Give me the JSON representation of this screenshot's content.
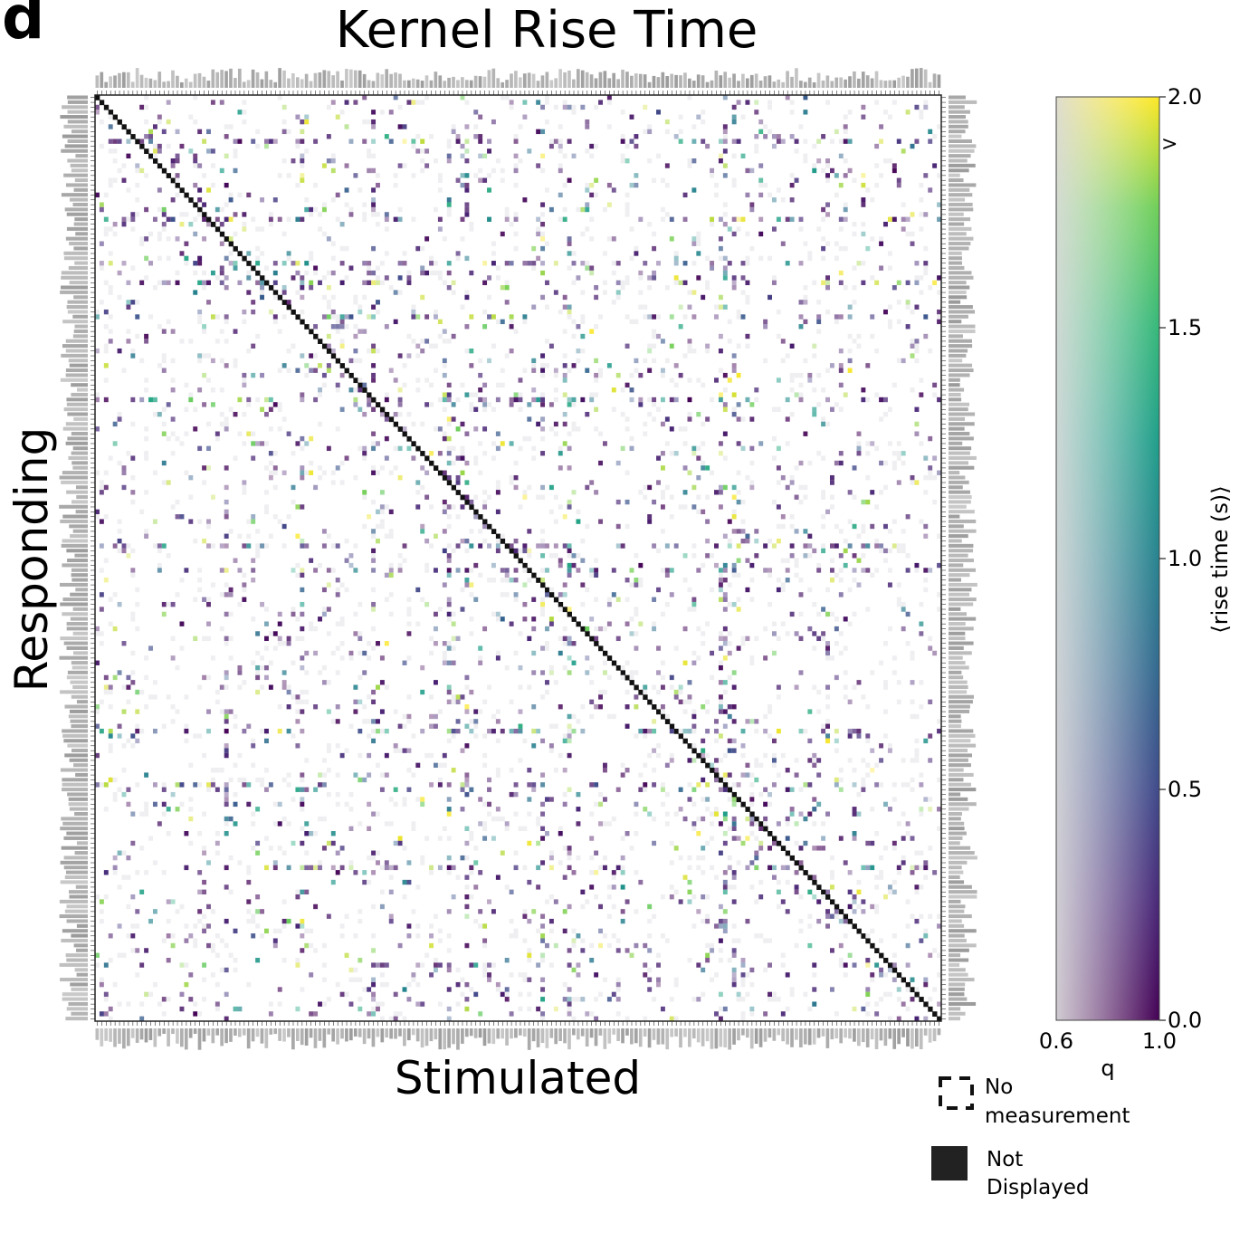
{
  "panel_letter": "d",
  "chart_data": {
    "type": "heatmap",
    "title": "Kernel Rise Time",
    "xlabel": "Stimulated",
    "ylabel": "Responding",
    "n_neurons": 190,
    "diagonal": "not displayed",
    "colorbar": {
      "label": "⟨rise time (s)⟩",
      "value_ticks": [
        "0.0",
        "0.5",
        "1.0",
        "1.5",
        "2.0"
      ],
      "value_range": [
        0.0,
        2.0
      ],
      "q_ticks": [
        "0.6",
        "1.0"
      ],
      "q_range": [
        0.6,
        1.0
      ],
      "q_label": "q",
      "overflow_marker": ">",
      "overflow_value": 1.9,
      "colormap": "viridis (alpha by q)"
    },
    "legend": [
      {
        "label": "No measurement",
        "style": "dashed"
      },
      {
        "label": "Not Displayed",
        "style": "filled"
      }
    ],
    "hot_rows": [
      9,
      25,
      34,
      38,
      45,
      62,
      92,
      97,
      130,
      141,
      142,
      158,
      178
    ],
    "hot_cols": [
      29,
      46,
      62,
      79,
      83,
      100,
      106,
      140,
      141,
      143
    ]
  },
  "legend_text": {
    "no_measurement_line1": "No",
    "no_measurement_line2": "measurement",
    "not_displayed_line1": "Not",
    "not_displayed_line2": "Displayed"
  },
  "colors": {
    "diagonal": "#111111",
    "frame": "#222222",
    "no_measurement_cell": "#efeff2",
    "viridis_low": "#440154",
    "viridis_mid": "#21908d",
    "viridis_high": "#fde725"
  }
}
